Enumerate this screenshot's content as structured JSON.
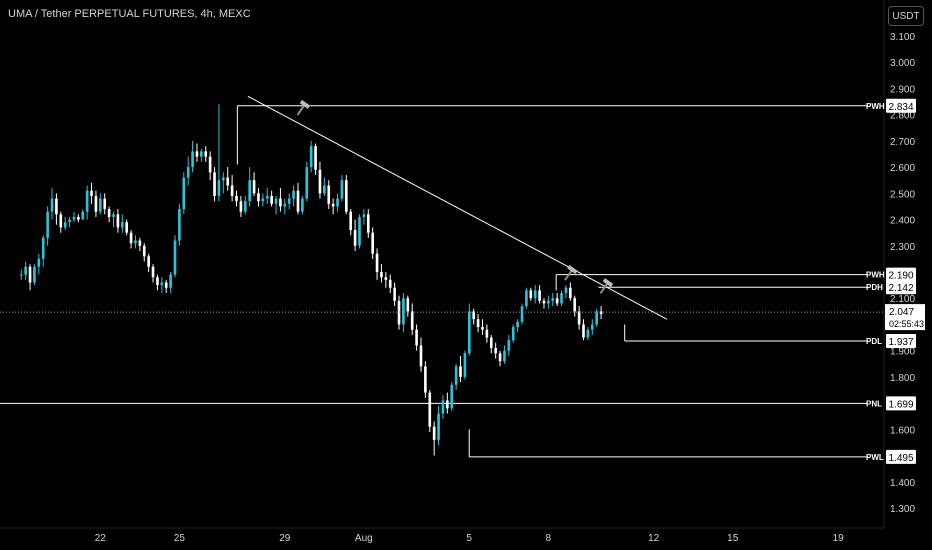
{
  "header": {
    "title": "UMA / Tether PERPETUAL FUTURES, 4h, MEXC",
    "currency_button": "USDT"
  },
  "colors": {
    "background": "#000000",
    "bull": "#26c6da",
    "bear": "#ffffff",
    "line": "#ffffff",
    "axis_text": "#d1d4dc"
  },
  "chart_data": {
    "type": "candlestick",
    "title": "UMA / Tether PERPETUAL FUTURES, 4h, MEXC",
    "xlabel": "",
    "ylabel": "",
    "ylim": [
      1.2,
      3.15
    ],
    "y_ticks": [
      "3.100",
      "3.000",
      "2.900",
      "2.800",
      "2.700",
      "2.600",
      "2.500",
      "2.400",
      "2.300",
      "2.200",
      "2.100",
      "1.900",
      "1.800",
      "1.700",
      "1.600",
      "1.500",
      "1.400",
      "1.300"
    ],
    "x_ticks": [
      {
        "label": "22",
        "day": 22
      },
      {
        "label": "25",
        "day": 25
      },
      {
        "label": "29",
        "day": 29
      },
      {
        "label": "Aug",
        "day": 32
      },
      {
        "label": "5",
        "day": 36
      },
      {
        "label": "8",
        "day": 39
      },
      {
        "label": "12",
        "day": 43
      },
      {
        "label": "15",
        "day": 46
      },
      {
        "label": "19",
        "day": 50
      }
    ],
    "x_range_days": [
      19.0,
      51.9
    ],
    "levels": [
      {
        "name": "PWH",
        "value": 2.834,
        "label": "2.834",
        "from_day": 27.2
      },
      {
        "name": "PWH",
        "value": 2.19,
        "label": "2.190",
        "from_day": 39.3
      },
      {
        "name": "PDH",
        "value": 2.142,
        "label": "2.142",
        "from_day": 40.9
      },
      {
        "name": "PDL",
        "value": 1.937,
        "label": "1.937",
        "from_day": 41.9
      },
      {
        "name": "PNL",
        "value": 1.699,
        "label": "1.699",
        "from_day": 19.0
      },
      {
        "name": "PWL",
        "value": 1.495,
        "label": "1.495",
        "from_day": 36.0
      }
    ],
    "current_price": {
      "value": 2.047,
      "label": "2.047",
      "countdown": "02:55:43"
    },
    "trendline": {
      "from": {
        "day": 27.6,
        "value": 2.87
      },
      "to": {
        "day": 43.5,
        "value": 2.02
      }
    },
    "candles_4h": [
      [
        2.19,
        2.21,
        2.17,
        2.19
      ],
      [
        2.19,
        2.24,
        2.17,
        2.22
      ],
      [
        2.22,
        2.23,
        2.13,
        2.16
      ],
      [
        2.16,
        2.23,
        2.15,
        2.22
      ],
      [
        2.22,
        2.27,
        2.19,
        2.25
      ],
      [
        2.25,
        2.34,
        2.22,
        2.33
      ],
      [
        2.33,
        2.45,
        2.3,
        2.43
      ],
      [
        2.43,
        2.52,
        2.4,
        2.48
      ],
      [
        2.48,
        2.5,
        2.38,
        2.42
      ],
      [
        2.42,
        2.43,
        2.35,
        2.37
      ],
      [
        2.37,
        2.41,
        2.36,
        2.39
      ],
      [
        2.39,
        2.41,
        2.37,
        2.4
      ],
      [
        2.4,
        2.43,
        2.39,
        2.41
      ],
      [
        2.41,
        2.42,
        2.39,
        2.4
      ],
      [
        2.4,
        2.44,
        2.4,
        2.43
      ],
      [
        2.43,
        2.53,
        2.4,
        2.51
      ],
      [
        2.51,
        2.54,
        2.46,
        2.49
      ],
      [
        2.49,
        2.51,
        2.41,
        2.43
      ],
      [
        2.43,
        2.5,
        2.42,
        2.48
      ],
      [
        2.48,
        2.5,
        2.42,
        2.44
      ],
      [
        2.44,
        2.45,
        2.39,
        2.41
      ],
      [
        2.41,
        2.43,
        2.37,
        2.42
      ],
      [
        2.42,
        2.44,
        2.35,
        2.37
      ],
      [
        2.37,
        2.42,
        2.35,
        2.39
      ],
      [
        2.39,
        2.4,
        2.34,
        2.35
      ],
      [
        2.35,
        2.36,
        2.29,
        2.31
      ],
      [
        2.31,
        2.34,
        2.29,
        2.32
      ],
      [
        2.32,
        2.33,
        2.28,
        2.3
      ],
      [
        2.3,
        2.31,
        2.24,
        2.26
      ],
      [
        2.26,
        2.27,
        2.2,
        2.22
      ],
      [
        2.22,
        2.23,
        2.16,
        2.18
      ],
      [
        2.18,
        2.19,
        2.13,
        2.15
      ],
      [
        2.15,
        2.18,
        2.12,
        2.16
      ],
      [
        2.16,
        2.17,
        2.12,
        2.14
      ],
      [
        2.14,
        2.2,
        2.12,
        2.19
      ],
      [
        2.19,
        2.34,
        2.18,
        2.32
      ],
      [
        2.32,
        2.46,
        2.3,
        2.44
      ],
      [
        2.44,
        2.58,
        2.42,
        2.56
      ],
      [
        2.56,
        2.64,
        2.53,
        2.6
      ],
      [
        2.6,
        2.7,
        2.58,
        2.66
      ],
      [
        2.66,
        2.69,
        2.62,
        2.64
      ],
      [
        2.64,
        2.67,
        2.62,
        2.66
      ],
      [
        2.66,
        2.68,
        2.62,
        2.64
      ],
      [
        2.64,
        2.66,
        2.55,
        2.58
      ],
      [
        2.58,
        2.6,
        2.47,
        2.49
      ],
      [
        2.49,
        2.84,
        2.47,
        2.55
      ],
      [
        2.55,
        2.58,
        2.5,
        2.56
      ],
      [
        2.56,
        2.6,
        2.51,
        2.53
      ],
      [
        2.53,
        2.57,
        2.47,
        2.49
      ],
      [
        2.49,
        2.51,
        2.45,
        2.47
      ],
      [
        2.47,
        2.49,
        2.41,
        2.43
      ],
      [
        2.43,
        2.49,
        2.42,
        2.47
      ],
      [
        2.47,
        2.6,
        2.45,
        2.55
      ],
      [
        2.55,
        2.58,
        2.49,
        2.5
      ],
      [
        2.5,
        2.52,
        2.45,
        2.47
      ],
      [
        2.47,
        2.5,
        2.45,
        2.48
      ],
      [
        2.48,
        2.52,
        2.46,
        2.49
      ],
      [
        2.49,
        2.51,
        2.45,
        2.46
      ],
      [
        2.46,
        2.49,
        2.42,
        2.48
      ],
      [
        2.48,
        2.52,
        2.43,
        2.45
      ],
      [
        2.45,
        2.48,
        2.42,
        2.46
      ],
      [
        2.46,
        2.5,
        2.44,
        2.48
      ],
      [
        2.48,
        2.53,
        2.45,
        2.51
      ],
      [
        2.51,
        2.54,
        2.42,
        2.43
      ],
      [
        2.43,
        2.49,
        2.42,
        2.48
      ],
      [
        2.48,
        2.62,
        2.47,
        2.6
      ],
      [
        2.6,
        2.7,
        2.58,
        2.68
      ],
      [
        2.68,
        2.69,
        2.57,
        2.59
      ],
      [
        2.59,
        2.62,
        2.48,
        2.5
      ],
      [
        2.5,
        2.56,
        2.49,
        2.53
      ],
      [
        2.53,
        2.55,
        2.44,
        2.46
      ],
      [
        2.46,
        2.48,
        2.42,
        2.45
      ],
      [
        2.45,
        2.5,
        2.43,
        2.48
      ],
      [
        2.48,
        2.57,
        2.47,
        2.55
      ],
      [
        2.55,
        2.57,
        2.42,
        2.43
      ],
      [
        2.43,
        2.44,
        2.34,
        2.36
      ],
      [
        2.36,
        2.4,
        2.28,
        2.3
      ],
      [
        2.3,
        2.42,
        2.29,
        2.41
      ],
      [
        2.41,
        2.44,
        2.38,
        2.42
      ],
      [
        2.42,
        2.44,
        2.33,
        2.35
      ],
      [
        2.35,
        2.37,
        2.25,
        2.27
      ],
      [
        2.27,
        2.29,
        2.17,
        2.2
      ],
      [
        2.2,
        2.23,
        2.16,
        2.18
      ],
      [
        2.18,
        2.2,
        2.14,
        2.17
      ],
      [
        2.17,
        2.19,
        2.12,
        2.14
      ],
      [
        2.14,
        2.16,
        2.07,
        2.09
      ],
      [
        2.09,
        2.11,
        1.98,
        2.0
      ],
      [
        2.0,
        2.12,
        1.97,
        2.1
      ],
      [
        2.1,
        2.11,
        2.03,
        2.05
      ],
      [
        2.05,
        2.08,
        1.96,
        1.98
      ],
      [
        1.98,
        2.0,
        1.9,
        1.92
      ],
      [
        1.92,
        1.95,
        1.82,
        1.84
      ],
      [
        1.84,
        1.86,
        1.72,
        1.74
      ],
      [
        1.74,
        1.75,
        1.59,
        1.61
      ],
      [
        1.61,
        1.63,
        1.5,
        1.56
      ],
      [
        1.56,
        1.69,
        1.54,
        1.66
      ],
      [
        1.66,
        1.73,
        1.64,
        1.71
      ],
      [
        1.71,
        1.74,
        1.66,
        1.68
      ],
      [
        1.68,
        1.78,
        1.67,
        1.77
      ],
      [
        1.77,
        1.85,
        1.75,
        1.84
      ],
      [
        1.84,
        1.88,
        1.78,
        1.8
      ],
      [
        1.8,
        1.9,
        1.79,
        1.89
      ],
      [
        1.89,
        2.08,
        1.88,
        2.05
      ],
      [
        2.05,
        2.06,
        2.0,
        2.02
      ],
      [
        2.02,
        2.04,
        1.97,
        1.99
      ],
      [
        1.99,
        2.02,
        1.96,
        1.98
      ],
      [
        1.98,
        2.0,
        1.93,
        1.95
      ],
      [
        1.95,
        1.96,
        1.89,
        1.91
      ],
      [
        1.91,
        1.93,
        1.87,
        1.89
      ],
      [
        1.89,
        1.9,
        1.84,
        1.86
      ],
      [
        1.86,
        1.92,
        1.85,
        1.9
      ],
      [
        1.9,
        1.96,
        1.88,
        1.94
      ],
      [
        1.94,
        2.0,
        1.93,
        1.99
      ],
      [
        1.99,
        2.02,
        1.97,
        2.01
      ],
      [
        2.01,
        2.08,
        2.0,
        2.07
      ],
      [
        2.07,
        2.14,
        2.06,
        2.13
      ],
      [
        2.13,
        2.14,
        2.09,
        2.1
      ],
      [
        2.1,
        2.15,
        2.08,
        2.13
      ],
      [
        2.13,
        2.15,
        2.08,
        2.09
      ],
      [
        2.09,
        2.1,
        2.06,
        2.08
      ],
      [
        2.08,
        2.11,
        2.06,
        2.09
      ],
      [
        2.09,
        2.12,
        2.07,
        2.1
      ],
      [
        2.1,
        2.12,
        2.07,
        2.08
      ],
      [
        2.08,
        2.13,
        2.07,
        2.12
      ],
      [
        2.12,
        2.15,
        2.1,
        2.14
      ],
      [
        2.14,
        2.16,
        2.09,
        2.1
      ],
      [
        2.1,
        2.11,
        2.03,
        2.05
      ],
      [
        2.05,
        2.07,
        1.98,
        2.0
      ],
      [
        2.0,
        2.02,
        1.94,
        1.95
      ],
      [
        1.95,
        1.99,
        1.94,
        1.98
      ],
      [
        1.98,
        2.02,
        1.96,
        2.0
      ],
      [
        2.0,
        2.06,
        1.99,
        2.05
      ],
      [
        2.05,
        2.07,
        2.02,
        2.04
      ]
    ],
    "candle_start_day": 19.0,
    "candle_step_days": 0.1667
  },
  "axis": {
    "price_labels": [
      "3.100",
      "3.000",
      "2.900",
      "2.800",
      "2.700",
      "2.600",
      "2.500",
      "2.400",
      "2.300",
      "2.200",
      "2.100",
      "1.900",
      "1.800",
      "1.700",
      "1.600",
      "1.500",
      "1.400",
      "1.300"
    ]
  }
}
